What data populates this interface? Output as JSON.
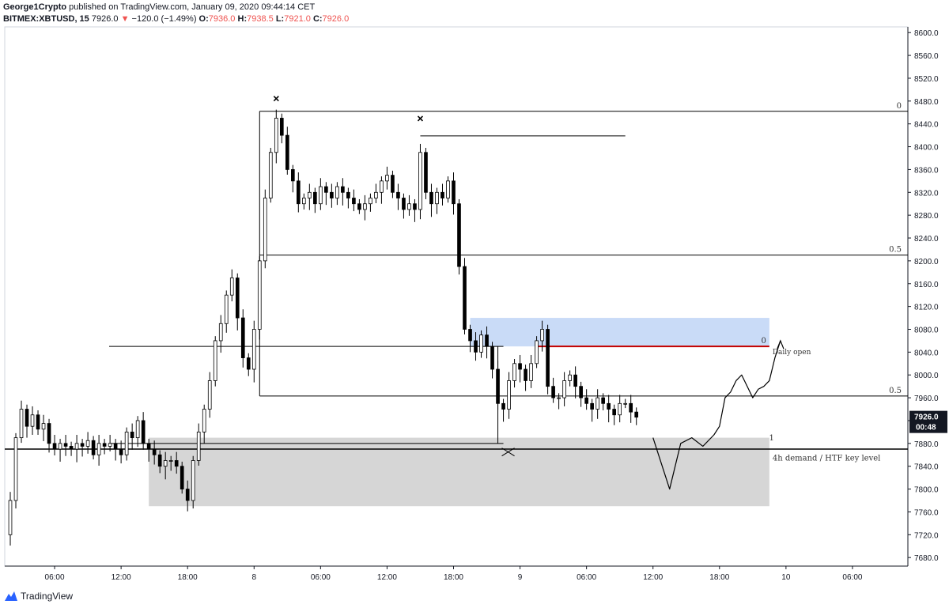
{
  "header": {
    "author": "George1Crypto",
    "published": "published on TradingView.com, January 09, 2020 09:44:14 CET",
    "symbol": "BITMEX:XBTUSD, 15",
    "last": "7926.0",
    "change_arrow": "▼",
    "change": "−120.0 (−1.49%)",
    "o_label": "O:",
    "o_val": "7936.0",
    "h_label": "H:",
    "h_val": "7938.5",
    "l_label": "L:",
    "l_val": "7921.0",
    "c_label": "C:",
    "c_val": "7926.0"
  },
  "footer": {
    "brand": "TradingView"
  },
  "colors": {
    "up": "#ffffff",
    "down": "#000000",
    "wick": "#000000",
    "supply_zone": "#c9dbf7",
    "demand_zone": "#d6d6d6",
    "daily_open": "#c40000",
    "last_price_bg": "#131722",
    "grid": "#e0e3eb"
  },
  "chart_data": {
    "type": "candlestick",
    "yaxis_ticks": [
      7680,
      7720,
      7760,
      7800,
      7840,
      7880,
      7920,
      7960,
      8000,
      8040,
      8080,
      8120,
      8160,
      8200,
      8240,
      8280,
      8320,
      8360,
      8400,
      8440,
      8480,
      8520,
      8560,
      8600
    ],
    "ylim": [
      7665,
      8610
    ],
    "x_labels": [
      {
        "t": 9,
        "label": "06:00"
      },
      {
        "t": 21,
        "label": "12:00"
      },
      {
        "t": 33,
        "label": "18:00"
      },
      {
        "t": 45,
        "label": "8"
      },
      {
        "t": 57,
        "label": "06:00"
      },
      {
        "t": 69,
        "label": "12:00"
      },
      {
        "t": 81,
        "label": "18:00"
      },
      {
        "t": 93,
        "label": "9"
      },
      {
        "t": 105,
        "label": "06:00"
      },
      {
        "t": 117,
        "label": "12:00"
      },
      {
        "t": 129,
        "label": "18:00"
      },
      {
        "t": 141,
        "label": "10"
      },
      {
        "t": 153,
        "label": "06:00"
      }
    ],
    "xlim": [
      0,
      163
    ],
    "price_path": [
      [
        0,
        7720
      ],
      [
        1,
        7780
      ],
      [
        2,
        7890
      ],
      [
        3,
        7940
      ],
      [
        4,
        7910
      ],
      [
        5,
        7930
      ],
      [
        6,
        7905
      ],
      [
        7,
        7915
      ],
      [
        8,
        7880
      ],
      [
        9,
        7870
      ],
      [
        10,
        7880
      ],
      [
        11,
        7875
      ],
      [
        12,
        7870
      ],
      [
        13,
        7880
      ],
      [
        14,
        7875
      ],
      [
        15,
        7885
      ],
      [
        16,
        7860
      ],
      [
        17,
        7880
      ],
      [
        18,
        7875
      ],
      [
        19,
        7880
      ],
      [
        20,
        7870
      ],
      [
        21,
        7860
      ],
      [
        22,
        7900
      ],
      [
        23,
        7890
      ],
      [
        24,
        7920
      ],
      [
        25,
        7880
      ],
      [
        26,
        7870
      ],
      [
        27,
        7860
      ],
      [
        28,
        7840
      ],
      [
        29,
        7850
      ],
      [
        30,
        7850
      ],
      [
        31,
        7840
      ],
      [
        32,
        7800
      ],
      [
        33,
        7780
      ],
      [
        34,
        7850
      ],
      [
        35,
        7900
      ],
      [
        36,
        7940
      ],
      [
        37,
        7990
      ],
      [
        38,
        8060
      ],
      [
        39,
        8090
      ],
      [
        40,
        8140
      ],
      [
        41,
        8170
      ],
      [
        42,
        8100
      ],
      [
        43,
        8030
      ],
      [
        44,
        8010
      ],
      [
        45,
        8080
      ],
      [
        46,
        8200
      ],
      [
        47,
        8310
      ],
      [
        48,
        8390
      ],
      [
        49,
        8450
      ],
      [
        50,
        8420
      ],
      [
        51,
        8360
      ],
      [
        52,
        8340
      ],
      [
        53,
        8300
      ],
      [
        54,
        8310
      ],
      [
        55,
        8320
      ],
      [
        56,
        8300
      ],
      [
        57,
        8330
      ],
      [
        58,
        8320
      ],
      [
        59,
        8310
      ],
      [
        60,
        8330
      ],
      [
        61,
        8320
      ],
      [
        62,
        8310
      ],
      [
        63,
        8300
      ],
      [
        64,
        8290
      ],
      [
        65,
        8300
      ],
      [
        66,
        8310
      ],
      [
        67,
        8320
      ],
      [
        68,
        8340
      ],
      [
        69,
        8350
      ],
      [
        70,
        8320
      ],
      [
        71,
        8310
      ],
      [
        72,
        8290
      ],
      [
        73,
        8300
      ],
      [
        74,
        8290
      ],
      [
        75,
        8390
      ],
      [
        76,
        8320
      ],
      [
        77,
        8300
      ],
      [
        78,
        8320
      ],
      [
        79,
        8310
      ],
      [
        80,
        8340
      ],
      [
        81,
        8300
      ],
      [
        82,
        8190
      ],
      [
        83,
        8080
      ],
      [
        84,
        8060
      ],
      [
        85,
        8040
      ],
      [
        86,
        8070
      ],
      [
        87,
        8050
      ],
      [
        88,
        8010
      ],
      [
        89,
        7950
      ],
      [
        90,
        7940
      ],
      [
        91,
        7990
      ],
      [
        92,
        8020
      ],
      [
        93,
        8010
      ],
      [
        94,
        7990
      ],
      [
        95,
        8020
      ],
      [
        96,
        8060
      ],
      [
        97,
        8080
      ],
      [
        98,
        7980
      ],
      [
        99,
        7960
      ],
      [
        100,
        7960
      ],
      [
        101,
        7990
      ],
      [
        102,
        8000
      ],
      [
        103,
        7980
      ],
      [
        104,
        7960
      ],
      [
        105,
        7950
      ],
      [
        106,
        7940
      ],
      [
        107,
        7960
      ],
      [
        108,
        7950
      ],
      [
        109,
        7940
      ],
      [
        110,
        7930
      ],
      [
        111,
        7950
      ],
      [
        112,
        7950
      ],
      [
        113,
        7935
      ],
      [
        114,
        7926
      ]
    ],
    "fib_levels": [
      {
        "label": "0",
        "price": 8462
      },
      {
        "label": "0.5",
        "price": 8210
      },
      {
        "label": "0",
        "price": 8050
      },
      {
        "label": "0.5",
        "price": 7963
      },
      {
        "label": "1",
        "price": 7880
      }
    ],
    "supply_zone": {
      "top": 8100,
      "bottom": 8050
    },
    "demand_zone": {
      "top": 7890,
      "bottom": 7770,
      "label": "4h demand / HTF key level"
    },
    "daily_open": {
      "price": 8050,
      "label": "Daily open"
    },
    "key_level": {
      "price": 7870
    },
    "last_price": {
      "value": "7926.0",
      "countdown": "00:48",
      "price": 7926
    },
    "x_markers": [
      8465,
      8430
    ],
    "projection": [
      [
        117,
        7890
      ],
      [
        119,
        7830
      ],
      [
        120,
        7800
      ],
      [
        121,
        7840
      ],
      [
        122,
        7880
      ],
      [
        124,
        7890
      ],
      [
        126,
        7875
      ],
      [
        128,
        7895
      ],
      [
        129,
        7910
      ],
      [
        130,
        7960
      ],
      [
        131,
        7970
      ],
      [
        132,
        7990
      ],
      [
        133,
        8000
      ],
      [
        134,
        7980
      ],
      [
        135,
        7960
      ],
      [
        136,
        7975
      ],
      [
        137,
        7980
      ],
      [
        138,
        7990
      ],
      [
        139,
        8030
      ],
      [
        140,
        8060
      ]
    ]
  }
}
